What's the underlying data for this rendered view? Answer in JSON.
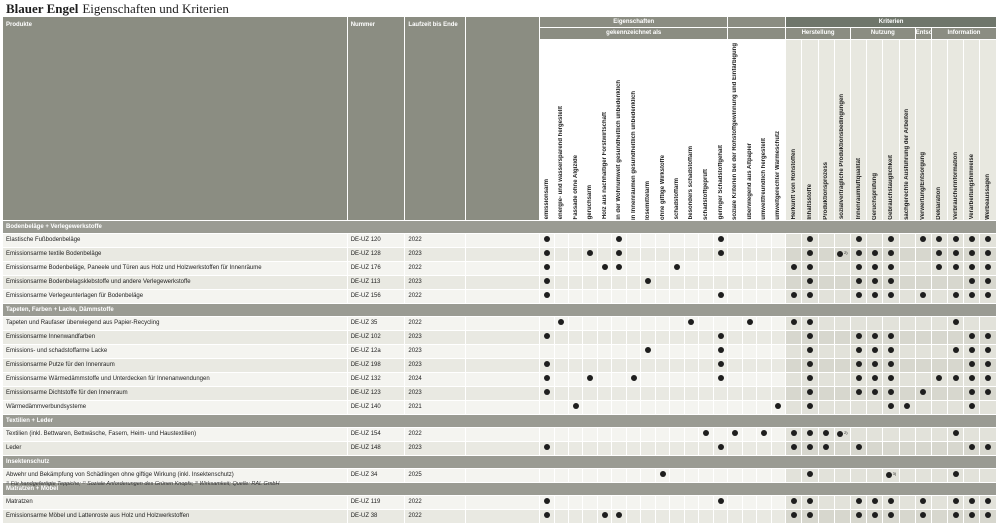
{
  "title": {
    "brand": "Blauer Engel",
    "subtitle": "Eigenschaften und Kriterien"
  },
  "headers": {
    "produkte": "Produkte",
    "nummer": "Nummer",
    "laufzeit": "Laufzeit bis Ende",
    "eigenschaften": "Eigenschaften",
    "gekennzeichnet": "gekennzeichnet als",
    "kriterien": "Kriterien",
    "herstellung": "Herstellung",
    "nutzung": "Nutzung",
    "entsorgung": "Entsorgung",
    "information": "Information"
  },
  "columns": [
    "emissionsarm",
    "energie- und wassersparend hergestellt",
    "Fassade ohne Algizide",
    "geruchsarm",
    "Holz aus nachhaltiger Forstwirtschaft",
    "in der Wohnumwelt gesundheitlich unbedenklich",
    "in Innenräumen gesundheitlich unbedenklich",
    "lösemittelarm",
    "ohne giftige Wirkstoffe",
    "schadstoffarm",
    "besonders schadstoffarm",
    "schadstoffgeprüft",
    "geringer Schadstoffgehalt",
    "soziale Kriterien bei der Rohstoffgewinnung und Einfärbigung",
    "überwiegend aus Altpapier",
    "umweltfreundlich hergestellt",
    "umweltgerechter Wärmeschutz",
    "Herkunft von Rohstoffen",
    "Inhaltsstoffe",
    "Produktionsprozess",
    "sozialverträgliche Produktionsbedingungen",
    "Innenraumluftqualität",
    "Geruchsprüfung",
    "Gebrauchstauglichkeit",
    "sachgerechte Ausführung der Arbeiten",
    "Verwertung/Entsorgung",
    "Deklaration",
    "Verbraucherinformation",
    "Verarbeitungshinweise",
    "Werbeaussagen"
  ],
  "sections": [
    {
      "title": "Bodenbeläge + Verlegewerkstoffe",
      "rows": [
        {
          "name": "Elastische Fußbodenbeläge",
          "nummer": "DE-UZ 120",
          "jahr": "2022",
          "marks": [
            0,
            5,
            12,
            18,
            21,
            23,
            25,
            26,
            27,
            28,
            29
          ]
        },
        {
          "name": "Emissionsarme textile Bodenbeläge",
          "nummer": "DE-UZ 128",
          "jahr": "2023",
          "marks": [
            0,
            3,
            5,
            12,
            18,
            20,
            21,
            22,
            23,
            26,
            27,
            28,
            29
          ],
          "notes": {
            "20": "2)"
          }
        },
        {
          "name": "Emissionsarme Bodenbeläge, Paneele und Türen aus Holz und Holzwerkstoffen für Innenräume",
          "nummer": "DE-UZ 176",
          "jahr": "2022",
          "marks": [
            0,
            4,
            5,
            9,
            17,
            18,
            21,
            22,
            23,
            26,
            27,
            28,
            29
          ]
        },
        {
          "name": "Emissionsarme Bodenbelagsklebstoffe und andere Verlegewerkstoffe",
          "nummer": "DE-UZ 113",
          "jahr": "2023",
          "marks": [
            0,
            7,
            18,
            21,
            22,
            23,
            28,
            29
          ]
        },
        {
          "name": "Emissionsarme Verlegeunterlagen für Bodenbeläge",
          "nummer": "DE-UZ 156",
          "jahr": "2022",
          "marks": [
            0,
            12,
            17,
            18,
            21,
            22,
            23,
            25,
            27,
            28,
            29
          ]
        }
      ]
    },
    {
      "title": "Tapeten, Farben + Lacke, Dämmstoffe",
      "rows": [
        {
          "name": "Tapeten und Raufaser überwiegend aus Papier-Recycling",
          "nummer": "DE-UZ 35",
          "jahr": "2022",
          "marks": [
            1,
            10,
            14,
            17,
            18,
            27
          ]
        },
        {
          "name": "Emissionsarme Innenwandfarben",
          "nummer": "DE-UZ 102",
          "jahr": "2023",
          "marks": [
            0,
            12,
            18,
            21,
            22,
            23,
            28,
            29
          ]
        },
        {
          "name": "Emissions- und schadstoffarme Lacke",
          "nummer": "DE-UZ 12a",
          "jahr": "2023",
          "marks": [
            7,
            12,
            18,
            21,
            22,
            23,
            27,
            28,
            29
          ]
        },
        {
          "name": "Emissionsarme Putze für den Innenraum",
          "nummer": "DE-UZ 198",
          "jahr": "2023",
          "marks": [
            0,
            12,
            18,
            21,
            22,
            23,
            28,
            29
          ]
        },
        {
          "name": "Emissionsarme Wärmedämmstoffe und Unterdecken für Innenanwendungen",
          "nummer": "DE-UZ 132",
          "jahr": "2024",
          "marks": [
            0,
            3,
            6,
            12,
            18,
            21,
            22,
            23,
            26,
            27,
            28,
            29
          ]
        },
        {
          "name": "Emissionsarme Dichtstoffe für den Innenraum",
          "nummer": "DE-UZ 123",
          "jahr": "2023",
          "marks": [
            0,
            18,
            21,
            22,
            23,
            25,
            28,
            29
          ]
        },
        {
          "name": "Wärmedämmverbundsysteme",
          "nummer": "DE-UZ 140",
          "jahr": "2021",
          "marks": [
            2,
            16,
            18,
            23,
            24,
            28
          ]
        }
      ]
    },
    {
      "title": "Textilien + Leder",
      "rows": [
        {
          "name": "Textilien (inkl. Bettwaren, Bettwäsche, Fasern, Heim- und Haustextilien)",
          "nummer": "DE-UZ 154",
          "jahr": "2022",
          "marks": [
            11,
            13,
            15,
            17,
            18,
            19,
            20,
            27
          ],
          "notes": {
            "20": "2)"
          }
        },
        {
          "name": "Leder",
          "nummer": "DE-UZ 148",
          "jahr": "2023",
          "marks": [
            0,
            12,
            17,
            18,
            19,
            21,
            28,
            29
          ]
        }
      ]
    },
    {
      "title": "Insektenschutz",
      "rows": [
        {
          "name": "Abwehr und Bekämpfung von Schädlingen ohne giftige Wirkung (inkl. Insektenschutz)",
          "nummer": "DE-UZ 34",
          "jahr": "2025",
          "marks": [
            8,
            18,
            23,
            27
          ],
          "notes": {
            "23": "3)"
          }
        }
      ]
    },
    {
      "title": "Matratzen + Möbel",
      "rows": [
        {
          "name": "Matratzen",
          "nummer": "DE-UZ 119",
          "jahr": "2022",
          "marks": [
            0,
            12,
            17,
            18,
            21,
            22,
            23,
            25,
            27,
            28,
            29
          ]
        },
        {
          "name": "Emissionsarme Möbel und Lattenroste aus Holz und Holzwerkstoffen",
          "nummer": "DE-UZ 38",
          "jahr": "2022",
          "marks": [
            0,
            4,
            5,
            17,
            18,
            21,
            22,
            23,
            25,
            27,
            28,
            29
          ]
        }
      ]
    }
  ],
  "footnote": "¹⁾ Für handgefertigte Teppiche; ²⁾ Soziale Anforderungen des Grünen Knopfs; ³⁾ Wirksamkeit; Quelle: RAL GmbH"
}
